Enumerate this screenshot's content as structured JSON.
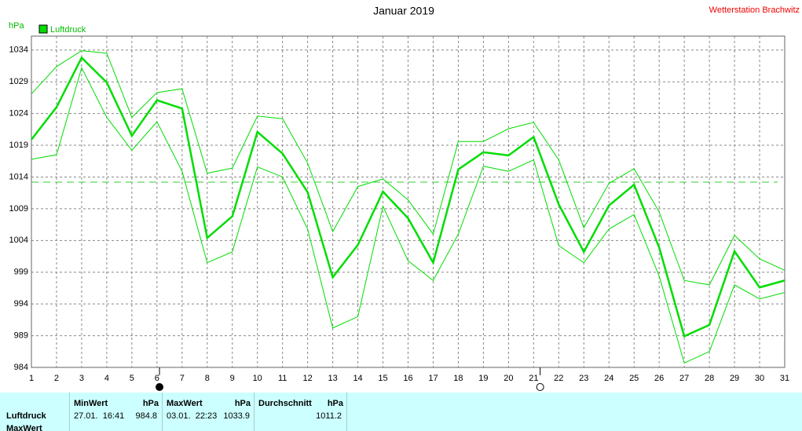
{
  "chart_data": {
    "type": "line",
    "title": "Januar 2019",
    "station": "Wetterstation Brachwitz",
    "y_unit": "hPa",
    "x": [
      1,
      2,
      3,
      4,
      5,
      6,
      7,
      8,
      9,
      10,
      11,
      12,
      13,
      14,
      15,
      16,
      17,
      18,
      19,
      20,
      21,
      22,
      23,
      24,
      25,
      26,
      27,
      28,
      29,
      30,
      31
    ],
    "xlim": [
      1,
      31
    ],
    "xticks": [
      1,
      2,
      3,
      4,
      5,
      6,
      7,
      8,
      9,
      10,
      11,
      12,
      13,
      14,
      15,
      16,
      17,
      18,
      19,
      20,
      21,
      22,
      23,
      24,
      25,
      26,
      27,
      28,
      29,
      30,
      31
    ],
    "ylim": [
      984,
      1036.2
    ],
    "yticks": [
      984,
      989,
      994,
      999,
      1004,
      1009,
      1014,
      1019,
      1024,
      1029,
      1034
    ],
    "grid": true,
    "series": [
      {
        "name": "Luftdruck",
        "color": "#00dd00",
        "values": [
          1019.9,
          1025.0,
          1032.8,
          1028.9,
          1020.5,
          1026.1,
          1024.8,
          1004.4,
          1007.8,
          1021.1,
          1017.7,
          1011.6,
          998.2,
          1003.3,
          1011.7,
          1007.5,
          1000.5,
          1015.2,
          1017.9,
          1017.4,
          1020.3,
          1009.7,
          1002.2,
          1009.5,
          1012.8,
          1002.9,
          988.9,
          990.7,
          1002.3,
          996.6,
          997.7
        ],
        "upper": [
          1027.1,
          1031.4,
          1033.9,
          1033.5,
          1023.4,
          1027.3,
          1027.9,
          1014.6,
          1015.4,
          1023.6,
          1023.2,
          1016.2,
          1005.4,
          1012.5,
          1013.7,
          1010.4,
          1005.0,
          1019.6,
          1019.6,
          1021.6,
          1022.6,
          1016.7,
          1006.0,
          1013.0,
          1015.3,
          1008.5,
          997.7,
          997.0,
          1004.8,
          1001.1,
          999.3
        ],
        "lower": [
          1016.8,
          1017.5,
          1031.2,
          1023.4,
          1018.2,
          1022.7,
          1014.9,
          1000.5,
          1002.2,
          1015.6,
          1014.0,
          1005.8,
          990.2,
          992.0,
          1009.4,
          1000.8,
          997.7,
          1005.0,
          1015.7,
          1014.9,
          1016.7,
          1003.2,
          1000.5,
          1005.8,
          1008.1,
          998.4,
          984.7,
          986.5,
          997.0,
          994.8,
          995.8
        ]
      }
    ],
    "reference_line": 1013.2,
    "markers": [
      {
        "x": 6.1,
        "filled": true
      },
      {
        "x": 21.26,
        "filled": false
      }
    ]
  },
  "table": {
    "header": [
      [
        "MinWert",
        "hPa"
      ],
      [
        "MaxWert",
        "hPa"
      ],
      [
        "Durchschnitt",
        "hPa"
      ]
    ],
    "rows": [
      [
        "Luftdruck",
        "27.01.  16:41",
        "984.8",
        "03.01.  22:23",
        "1033.9",
        "1011.2"
      ],
      [
        "MaxWert"
      ]
    ]
  }
}
